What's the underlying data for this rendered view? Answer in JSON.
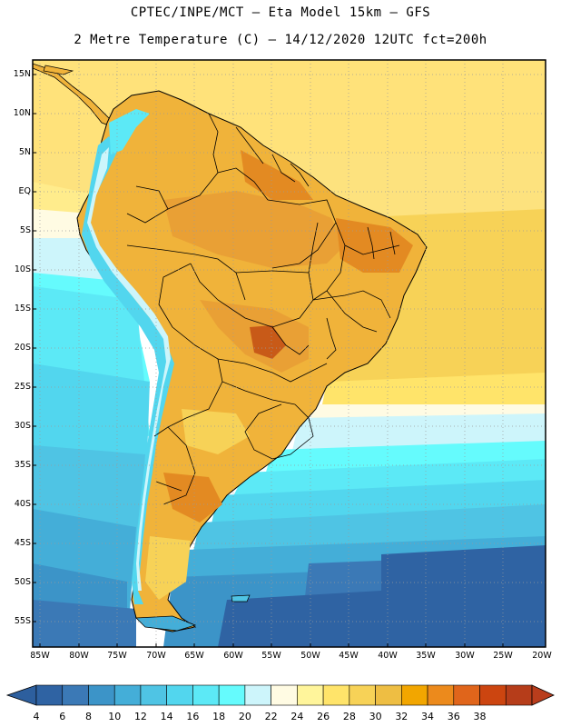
{
  "title": {
    "line1": "CPTEC/INPE/MCT –  Eta Model 15km – GFS",
    "line2": "2 Metre Temperature (C) – 14/12/2020 12UTC fct=200h"
  },
  "latitude_labels": [
    "15N",
    "10N",
    "5N",
    "EQ",
    "5S",
    "10S",
    "15S",
    "20S",
    "25S",
    "30S",
    "35S",
    "40S",
    "45S",
    "50S",
    "55S"
  ],
  "longitude_labels": [
    "85W",
    "80W",
    "75W",
    "70W",
    "65W",
    "60W",
    "55W",
    "50W",
    "45W",
    "40W",
    "35W",
    "30W",
    "25W",
    "20W"
  ],
  "colorbar": {
    "labels": [
      "4",
      "6",
      "8",
      "10",
      "12",
      "14",
      "16",
      "18",
      "20",
      "22",
      "24",
      "26",
      "28",
      "30",
      "32",
      "34",
      "36",
      "38"
    ],
    "colors": [
      "#2f63a3",
      "#3b79b6",
      "#3c94c8",
      "#44aed8",
      "#4fc4e4",
      "#52d6ee",
      "#5ce9f6",
      "#65fbfd",
      "#cdf5fb",
      "#fffbe3",
      "#fff59b",
      "#ffe46a",
      "#f7d257",
      "#eebe43",
      "#f2a600",
      "#ec8a1c",
      "#e0651b",
      "#cc4510",
      "#b63d1a"
    ],
    "left_arrow_color": "#2d5f9e",
    "right_arrow_color": "#b93d1c"
  },
  "palette": {
    "ocean_tropical": "#ffe27a",
    "ocean_warm": "#ffec8c",
    "land_base": "#f0b33a",
    "land_hot": "#e38a22",
    "land_hottest": "#c85a18",
    "andes_cold": "#52d6ee",
    "andes_snow": "#cdf5fb",
    "ocean_cool": "#4fc4e4",
    "ocean_cold": "#3c94c8",
    "ocean_coldest": "#2f63a3"
  }
}
